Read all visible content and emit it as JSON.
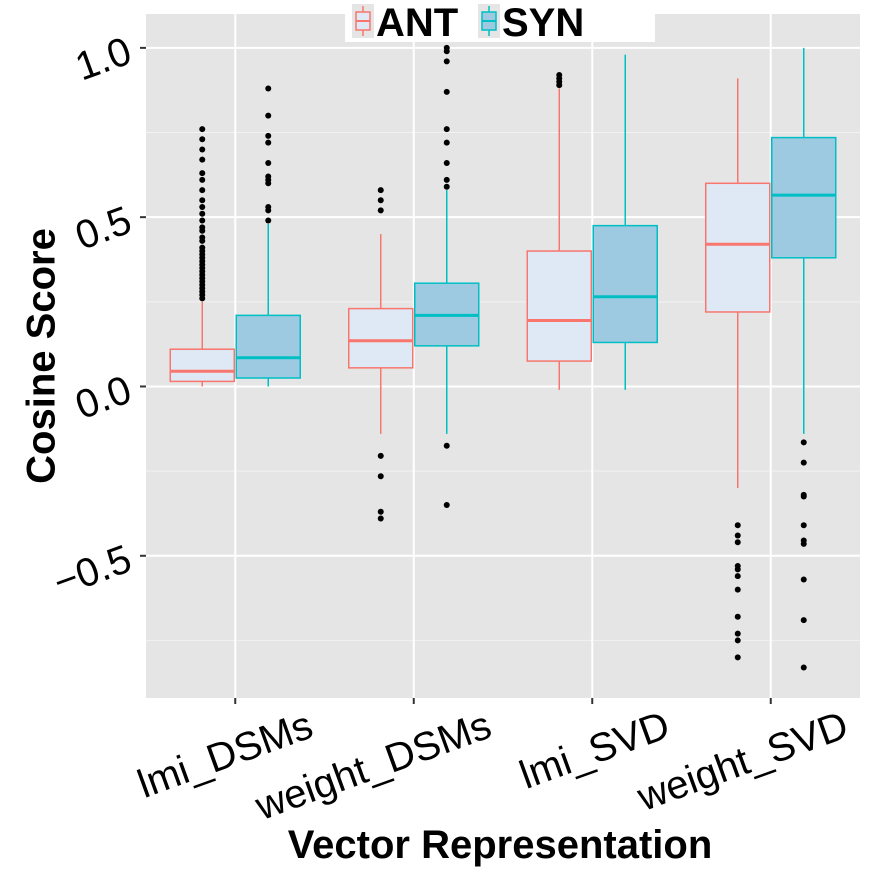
{
  "chart_data": {
    "type": "box",
    "categories": [
      "lmi_DSMs",
      "weight_DSMs",
      "lmi_SVD",
      "weight_SVD"
    ],
    "xlabel": "Vector Representation",
    "ylabel": "Cosine Score",
    "ylim": [
      -0.92,
      1.1
    ],
    "yticks": [
      {
        "value": -0.5,
        "label": "−0.5"
      },
      {
        "value": 0.0,
        "label": "0.0"
      },
      {
        "value": 0.5,
        "label": "0.5"
      },
      {
        "value": 1.0,
        "label": "1.0"
      }
    ],
    "grid": true,
    "legend": "top-center",
    "series": [
      {
        "name": "ANT",
        "line_color": "#F8766D",
        "fill_color": "#DFE9F5",
        "boxes": [
          {
            "category": "lmi_DSMs",
            "whisker_low": 0.0,
            "q1": 0.015,
            "median": 0.045,
            "q3": 0.11,
            "whisker_high": 0.25,
            "outliers": [
              0.26,
              0.27,
              0.28,
              0.29,
              0.3,
              0.31,
              0.32,
              0.33,
              0.34,
              0.35,
              0.36,
              0.37,
              0.38,
              0.39,
              0.4,
              0.41,
              0.43,
              0.44,
              0.46,
              0.47,
              0.49,
              0.51,
              0.53,
              0.55,
              0.58,
              0.61,
              0.63,
              0.67,
              0.7,
              0.73,
              0.76
            ]
          },
          {
            "category": "weight_DSMs",
            "whisker_low": -0.14,
            "q1": 0.055,
            "median": 0.135,
            "q3": 0.23,
            "whisker_high": 0.45,
            "outliers": [
              -0.205,
              -0.265,
              -0.37,
              -0.39,
              0.52,
              0.55,
              0.58
            ]
          },
          {
            "category": "lmi_SVD",
            "whisker_low": -0.01,
            "q1": 0.075,
            "median": 0.195,
            "q3": 0.4,
            "whisker_high": 0.88,
            "outliers": [
              0.89,
              0.9,
              0.91,
              0.92
            ]
          },
          {
            "category": "weight_SVD",
            "whisker_low": -0.3,
            "q1": 0.22,
            "median": 0.42,
            "q3": 0.6,
            "whisker_high": 0.91,
            "outliers": [
              -0.41,
              -0.44,
              -0.46,
              -0.53,
              -0.54,
              -0.56,
              -0.6,
              -0.68,
              -0.73,
              -0.75,
              -0.8
            ]
          }
        ]
      },
      {
        "name": "SYN",
        "line_color": "#00BFC4",
        "fill_color": "#9DCAE1",
        "boxes": [
          {
            "category": "lmi_DSMs",
            "whisker_low": 0.0,
            "q1": 0.025,
            "median": 0.085,
            "q3": 0.21,
            "whisker_high": 0.48,
            "outliers": [
              0.49,
              0.52,
              0.53,
              0.6,
              0.61,
              0.62,
              0.66,
              0.72,
              0.74,
              0.8,
              0.88
            ]
          },
          {
            "category": "weight_DSMs",
            "whisker_low": -0.14,
            "q1": 0.12,
            "median": 0.21,
            "q3": 0.305,
            "whisker_high": 0.58,
            "outliers": [
              -0.175,
              -0.35,
              0.59,
              0.61,
              0.66,
              0.72,
              0.76,
              0.87,
              0.96,
              0.99,
              1.0
            ]
          },
          {
            "category": "lmi_SVD",
            "whisker_low": -0.01,
            "q1": 0.13,
            "median": 0.265,
            "q3": 0.475,
            "whisker_high": 0.98,
            "outliers": []
          },
          {
            "category": "weight_SVD",
            "whisker_low": -0.14,
            "q1": 0.38,
            "median": 0.565,
            "q3": 0.735,
            "whisker_high": 1.0,
            "outliers": [
              -0.165,
              -0.225,
              -0.32,
              -0.325,
              -0.41,
              -0.455,
              -0.465,
              -0.57,
              -0.69,
              -0.83
            ]
          }
        ]
      }
    ]
  }
}
